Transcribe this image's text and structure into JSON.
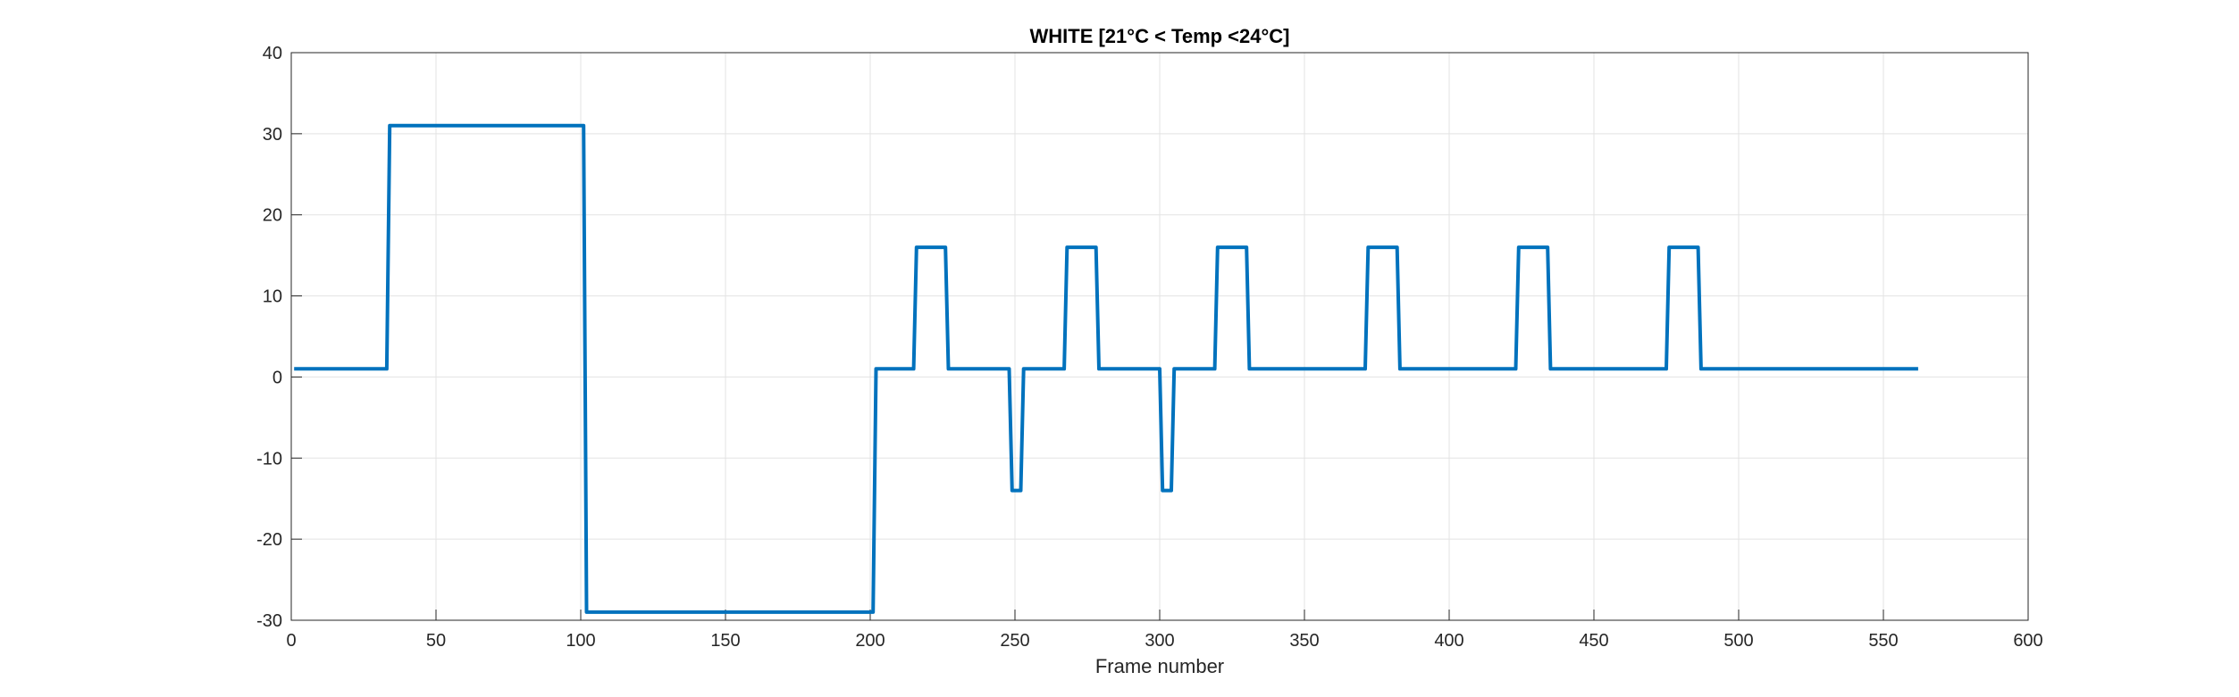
{
  "chart_data": {
    "type": "line",
    "title": "WHITE [21°C < Temp <24°C]",
    "xlabel": "Frame number",
    "ylabel": "",
    "xlim": [
      0,
      600
    ],
    "ylim": [
      -30,
      40
    ],
    "xticks": [
      0,
      50,
      100,
      150,
      200,
      250,
      300,
      350,
      400,
      450,
      500,
      550,
      600
    ],
    "yticks": [
      -30,
      -20,
      -10,
      0,
      10,
      20,
      30,
      40
    ],
    "grid": true,
    "line_color": "#0072BD",
    "series": [
      {
        "x": [
          1,
          33,
          34,
          101,
          102,
          201,
          202,
          215,
          216,
          226,
          227,
          248,
          249,
          252,
          253,
          267,
          268,
          278,
          279,
          300,
          301,
          304,
          305,
          319,
          320,
          330,
          331,
          371,
          372,
          382,
          383,
          423,
          424,
          434,
          435,
          475,
          476,
          486,
          487,
          562
        ],
        "y": [
          1,
          1,
          31,
          31,
          -29,
          -29,
          1,
          1,
          16,
          16,
          1,
          1,
          -14,
          -14,
          1,
          1,
          16,
          16,
          1,
          1,
          -14,
          -14,
          1,
          1,
          16,
          16,
          1,
          1,
          16,
          16,
          1,
          1,
          16,
          16,
          1,
          1,
          16,
          16,
          1,
          1
        ]
      }
    ]
  }
}
